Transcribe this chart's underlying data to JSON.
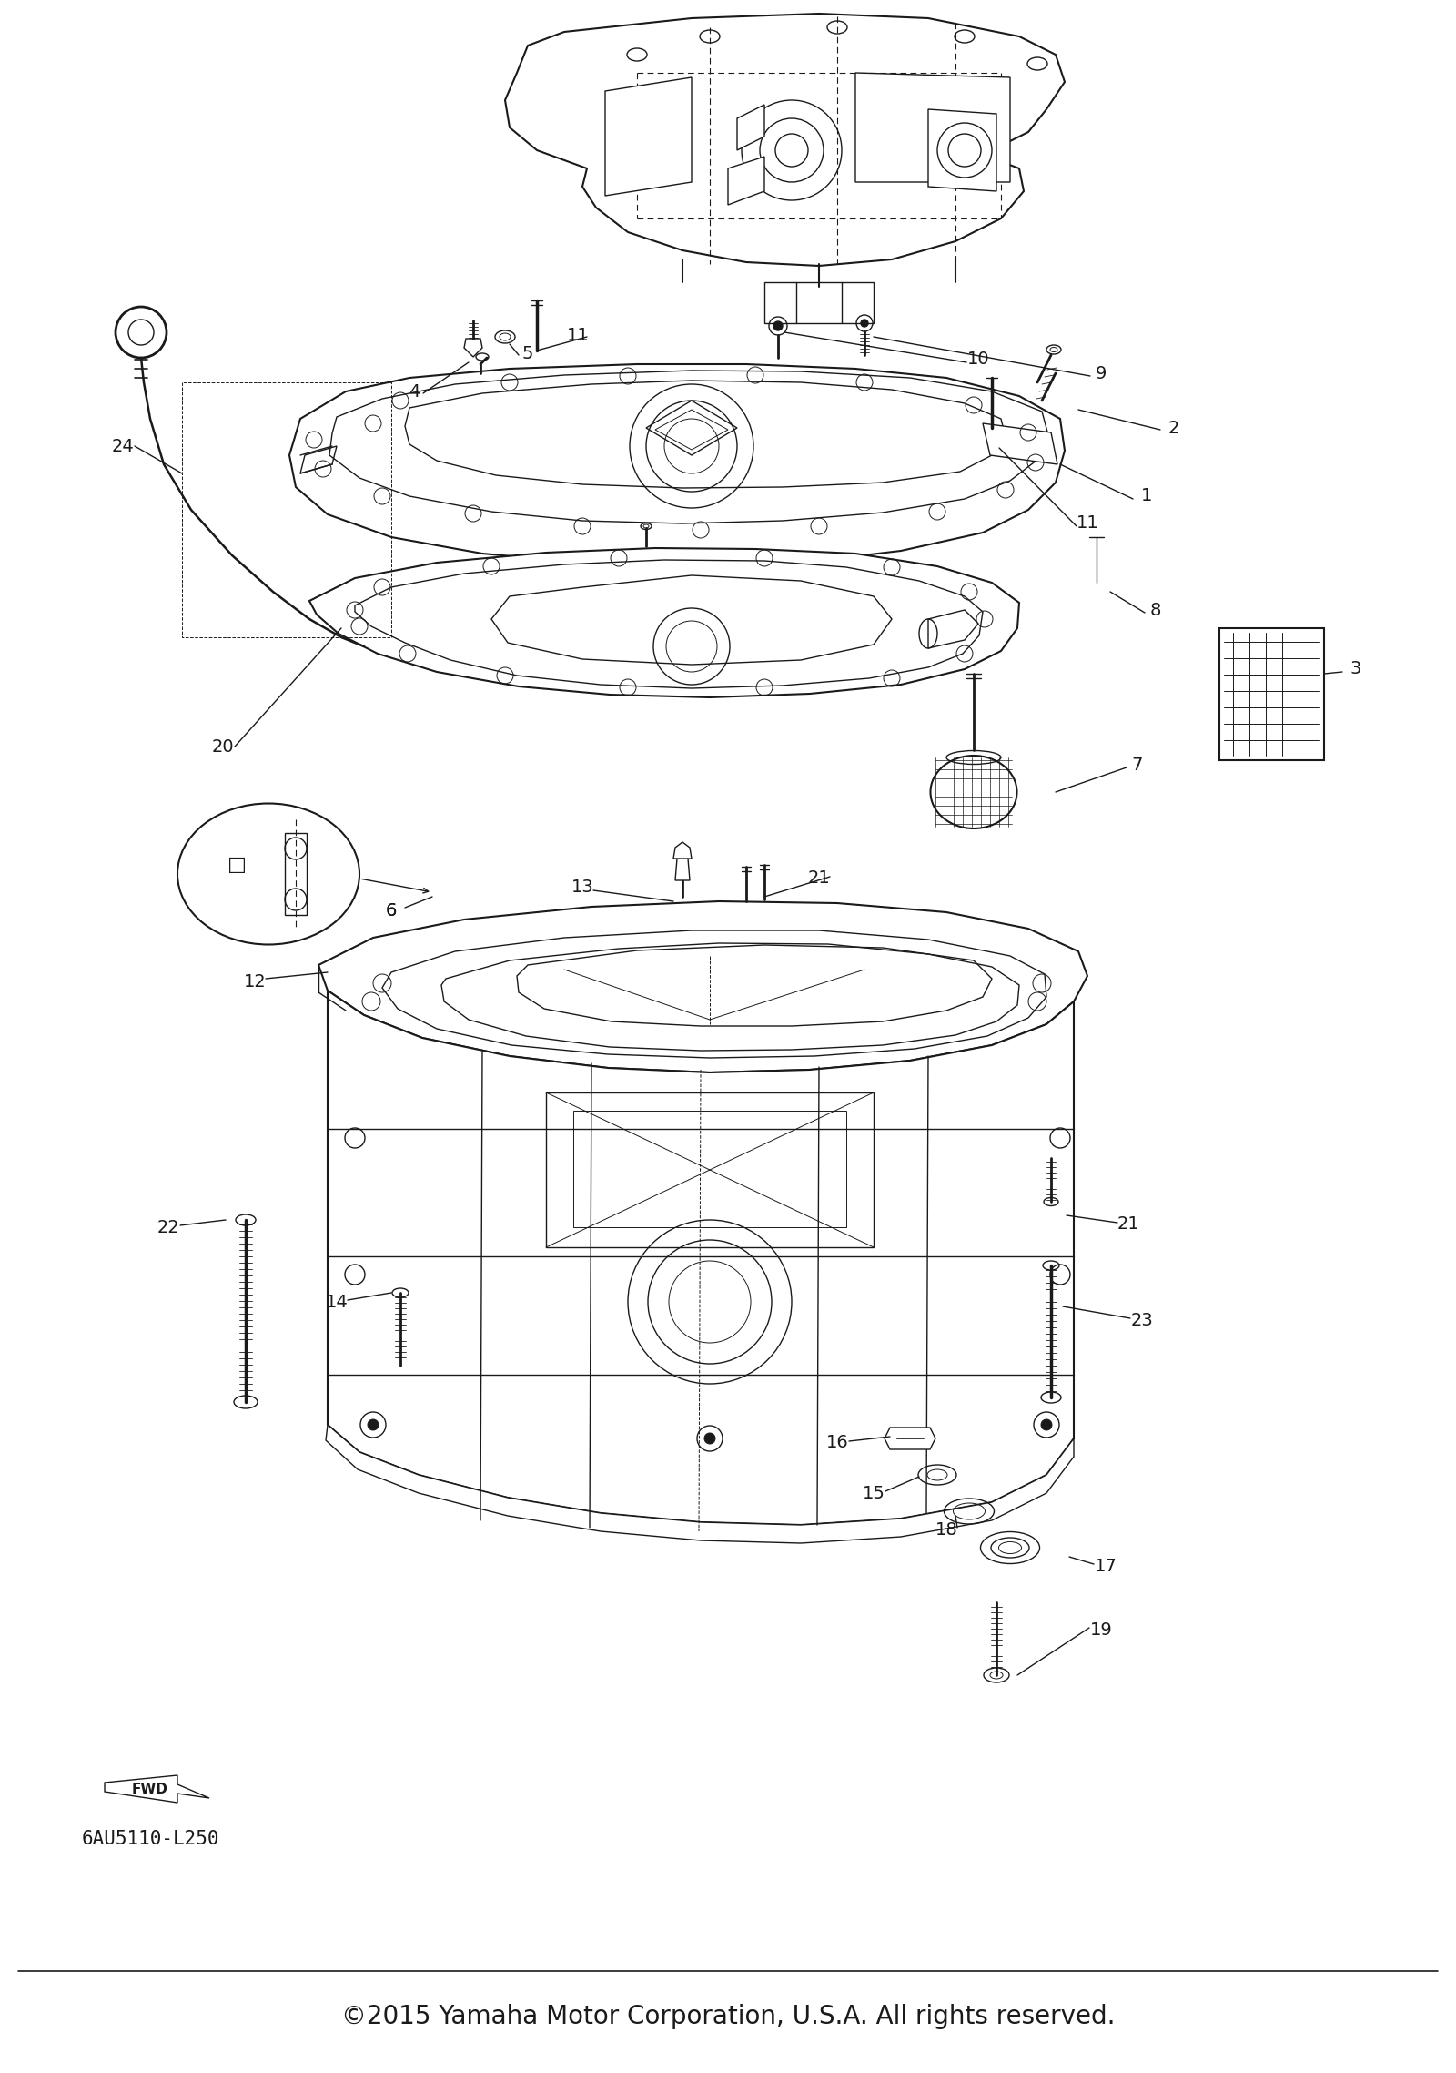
{
  "background_color": "#ffffff",
  "line_color": "#1a1a1a",
  "copyright_text": "©2015 Yamaha Motor Corporation, U.S.A. All rights reserved.",
  "part_number": "6AU5110-L250",
  "copyright_fontsize": 20,
  "part_number_fontsize": 15,
  "fig_width": 16.0,
  "fig_height": 22.77,
  "dpi": 100
}
